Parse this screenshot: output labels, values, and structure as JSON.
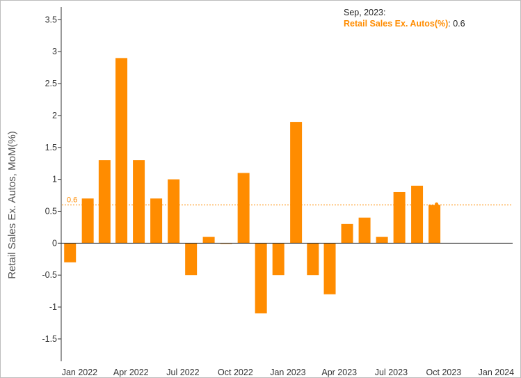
{
  "chart_data": {
    "type": "bar",
    "ylabel": "Retail Sales Ex. Autos, MoM(%)",
    "ylim": [
      -1.85,
      3.7
    ],
    "yticks": [
      3.5,
      3,
      2.5,
      2,
      1.5,
      1,
      0.5,
      0,
      -0.5,
      -1,
      -1.5
    ],
    "ytick_labels": [
      "3.5",
      "3",
      "2.5",
      "2",
      "1.5",
      "1",
      "0.5",
      "0",
      "-0.5",
      "-1",
      "-1.5"
    ],
    "xticks": [
      "2022-01-01",
      "2022-04-01",
      "2022-07-01",
      "2022-10-01",
      "2023-01-01",
      "2023-04-01",
      "2023-07-01",
      "2023-10-01",
      "2024-01-01"
    ],
    "xtick_labels": [
      "Jan 2022",
      "Apr 2022",
      "Jul 2022",
      "Oct 2022",
      "Jan 2023",
      "Apr 2023",
      "Jul 2023",
      "Oct 2023",
      "Jan 2024"
    ],
    "x_range": [
      "2021-12-01",
      "2024-01-31"
    ],
    "series": [
      {
        "name": "Retail Sales Ex. Autos(%)",
        "color": "#ff8c00",
        "x": [
          "2021-12",
          "2022-01",
          "2022-02",
          "2022-03",
          "2022-04",
          "2022-05",
          "2022-06",
          "2022-07",
          "2022-08",
          "2022-09",
          "2022-10",
          "2022-11",
          "2022-12",
          "2023-01",
          "2023-02",
          "2023-03",
          "2023-04",
          "2023-05",
          "2023-06",
          "2023-07",
          "2023-08",
          "2023-09"
        ],
        "values": [
          -0.3,
          0.7,
          1.3,
          2.9,
          1.3,
          0.7,
          1.0,
          -0.5,
          0.1,
          0.0,
          1.1,
          -1.1,
          -0.5,
          1.9,
          -0.5,
          -0.8,
          0.3,
          0.4,
          0.1,
          0.8,
          0.9,
          0.6
        ]
      }
    ],
    "reference_line": {
      "value": 0.6,
      "label": "0.6",
      "color": "#ff8c00",
      "style": "dotted"
    },
    "grid": false
  },
  "tooltip": {
    "date": "Sep, 2023:",
    "series_label": "Retail Sales Ex. Autos(%)",
    "value": "0.6"
  }
}
